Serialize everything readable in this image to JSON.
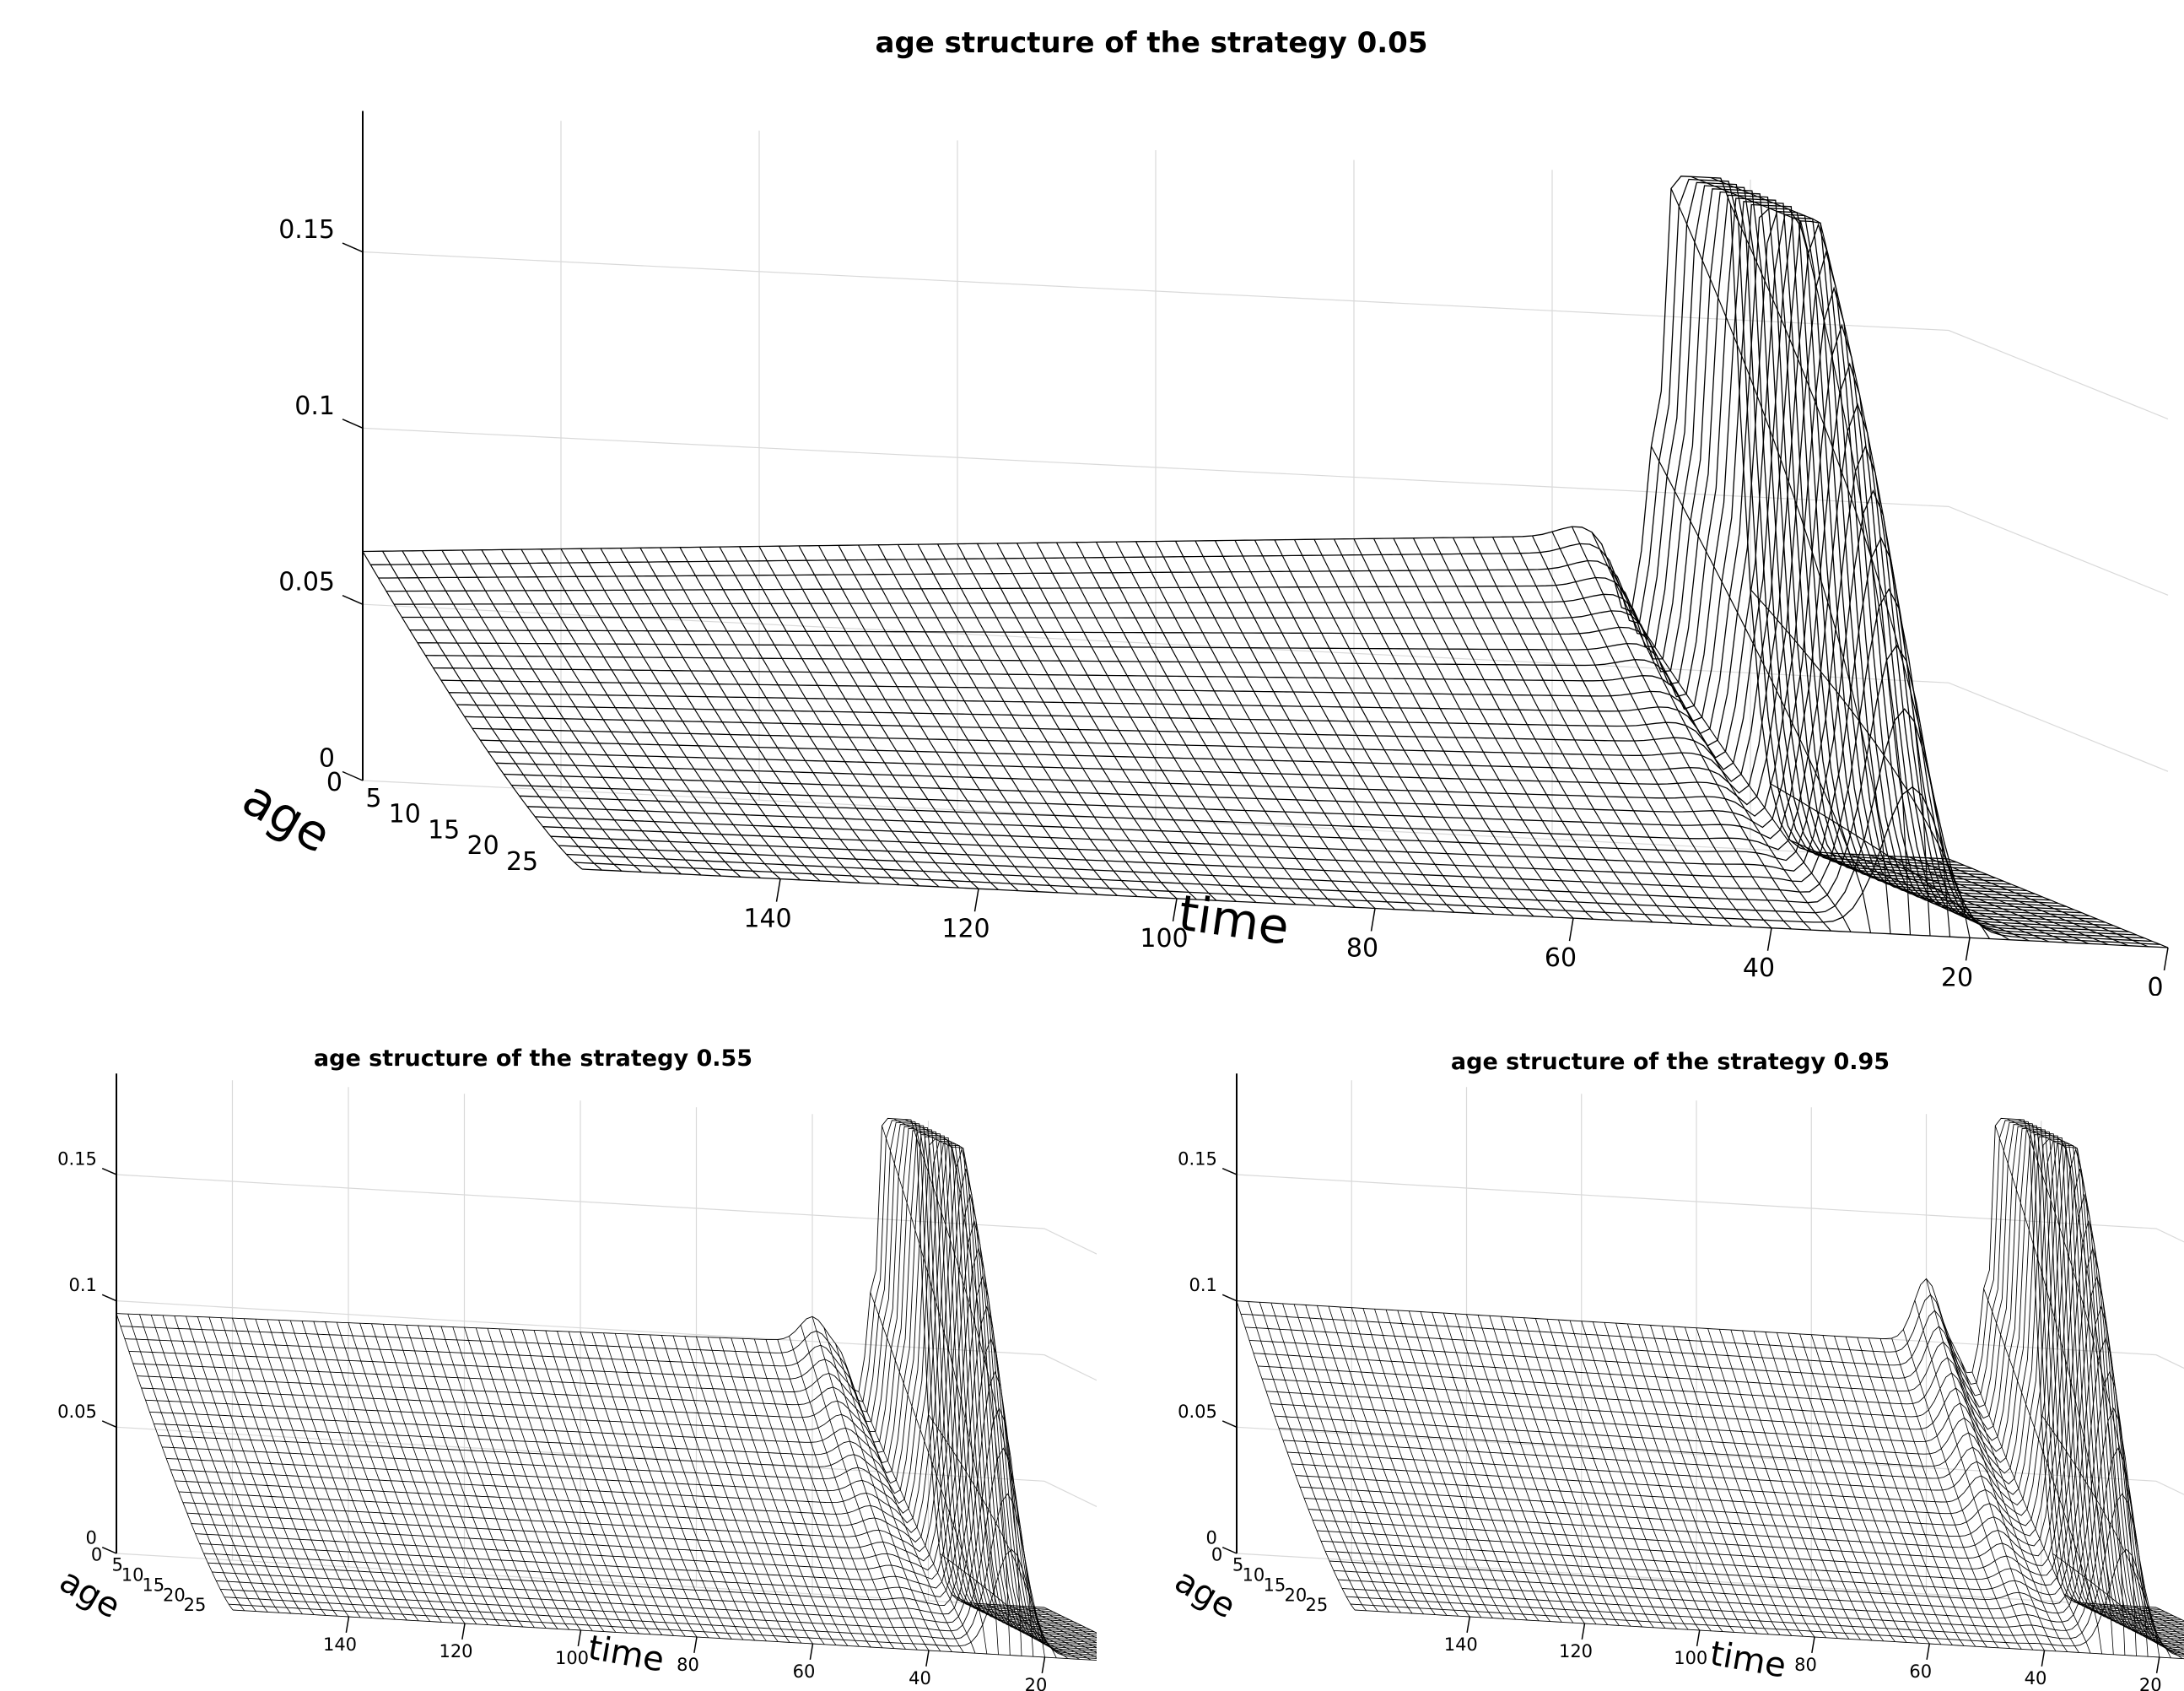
{
  "chart_data": [
    {
      "type": "surface",
      "title": "age structure of the strategy 0.05",
      "xlabel": "time",
      "ylabel": "age",
      "zlabel": "",
      "x_ticks": [
        "140",
        "120",
        "100",
        "80",
        "60",
        "40",
        "20",
        "0"
      ],
      "y_ticks": [
        "0",
        "5",
        "10",
        "15",
        "20",
        "25"
      ],
      "z_ticks": [
        "0",
        "0.05",
        "0.1",
        "0.15"
      ],
      "xlim": [
        0,
        160
      ],
      "ylim": [
        0,
        28
      ],
      "zlim": [
        0,
        0.19
      ],
      "grid": true,
      "surface": {
        "plateau_level": 0.086,
        "tail_level": 0.065,
        "dip_time": 32,
        "dip_level": 0.06,
        "bump_time": 37,
        "bump_level": 0.09,
        "peak_time": 25,
        "peak_level": 0.19
      }
    },
    {
      "type": "surface",
      "title": "age structure of the strategy 0.55",
      "xlabel": "time",
      "ylabel": "age",
      "zlabel": "",
      "x_ticks": [
        "140",
        "120",
        "100",
        "80",
        "60",
        "40",
        "20",
        "0"
      ],
      "y_ticks": [
        "0",
        "5",
        "10",
        "15",
        "20",
        "25"
      ],
      "z_ticks": [
        "0",
        "0.05",
        "0.1",
        "0.15"
      ],
      "xlim": [
        0,
        160
      ],
      "ylim": [
        0,
        28
      ],
      "zlim": [
        0,
        0.19
      ],
      "grid": true,
      "surface": {
        "plateau_level": 0.1,
        "tail_level": 0.095,
        "dip_time": 32,
        "dip_level": 0.08,
        "bump_time": 40,
        "bump_level": 0.11,
        "peak_time": 25,
        "peak_level": 0.19
      }
    },
    {
      "type": "surface",
      "title": "age structure of the strategy 0.95",
      "xlabel": "time",
      "ylabel": "age",
      "zlabel": "",
      "x_ticks": [
        "140",
        "120",
        "100",
        "80",
        "60",
        "40",
        "20",
        "0"
      ],
      "y_ticks": [
        "0",
        "5",
        "10",
        "15",
        "20",
        "25"
      ],
      "z_ticks": [
        "0",
        "0.05",
        "0.1",
        "0.15"
      ],
      "xlim": [
        0,
        160
      ],
      "ylim": [
        0,
        28
      ],
      "zlim": [
        0,
        0.19
      ],
      "grid": true,
      "surface": {
        "plateau_level": 0.1,
        "tail_level": 0.1,
        "dip_time": 32,
        "dip_level": 0.09,
        "bump_time": 40,
        "bump_level": 0.125,
        "peak_time": 25,
        "peak_level": 0.19
      }
    }
  ]
}
